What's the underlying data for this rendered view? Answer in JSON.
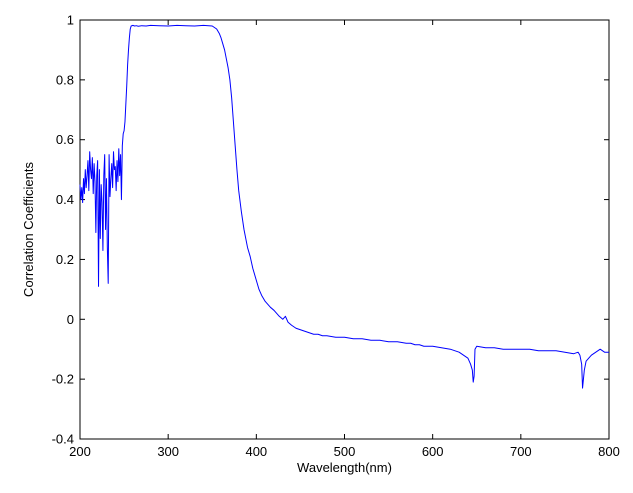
{
  "chart_data": {
    "type": "line",
    "title": "",
    "xlabel": "Wavelength(nm)",
    "ylabel": "Correlation Coefficients",
    "xlim": [
      200,
      800
    ],
    "ylim": [
      -0.4,
      1
    ],
    "xticks": [
      200,
      300,
      400,
      500,
      600,
      700,
      800
    ],
    "xtick_labels": [
      "200",
      "300",
      "400",
      "500",
      "600",
      "700",
      "800"
    ],
    "yticks": [
      -0.4,
      -0.2,
      0,
      0.2,
      0.4,
      0.6,
      0.8,
      1
    ],
    "ytick_labels": [
      "-0.4",
      "-0.2",
      "0",
      "0.2",
      "0.4",
      "0.6",
      "0.8",
      "1"
    ],
    "grid": false,
    "legend": "none",
    "series": [
      {
        "color": "#0000ff",
        "x": [
          200,
          201,
          202,
          203,
          204,
          205,
          206,
          207,
          208,
          209,
          210,
          211,
          212,
          213,
          214,
          215,
          216,
          217,
          218,
          219,
          220,
          221,
          222,
          223,
          224,
          225,
          226,
          227,
          228,
          229,
          230,
          231,
          232,
          233,
          234,
          235,
          236,
          237,
          238,
          239,
          240,
          241,
          242,
          243,
          244,
          245,
          246,
          247,
          248,
          249,
          250,
          251,
          252,
          253,
          254,
          255,
          256,
          257,
          258,
          260,
          262,
          264,
          266,
          268,
          270,
          275,
          280,
          290,
          300,
          310,
          320,
          330,
          340,
          350,
          355,
          358,
          360,
          362,
          364,
          366,
          368,
          370,
          372,
          374,
          376,
          378,
          380,
          383,
          386,
          390,
          393,
          396,
          400,
          403,
          406,
          410,
          413,
          416,
          420,
          423,
          426,
          430,
          433,
          436,
          440,
          445,
          450,
          455,
          460,
          465,
          470,
          475,
          480,
          490,
          500,
          510,
          520,
          530,
          540,
          550,
          560,
          570,
          575,
          580,
          585,
          590,
          600,
          610,
          620,
          630,
          640,
          643,
          645,
          646,
          647,
          648,
          650,
          660,
          670,
          680,
          690,
          700,
          710,
          720,
          730,
          740,
          750,
          760,
          765,
          767,
          769,
          770,
          771,
          772,
          774,
          777,
          780,
          785,
          790,
          795,
          800
        ],
        "y": [
          0.45,
          0.4,
          0.44,
          0.39,
          0.47,
          0.42,
          0.5,
          0.44,
          0.48,
          0.53,
          0.43,
          0.56,
          0.5,
          0.47,
          0.54,
          0.42,
          0.52,
          0.46,
          0.29,
          0.48,
          0.53,
          0.11,
          0.5,
          0.27,
          0.45,
          0.39,
          0.23,
          0.48,
          0.55,
          0.3,
          0.47,
          0.24,
          0.12,
          0.55,
          0.41,
          0.47,
          0.52,
          0.44,
          0.56,
          0.5,
          0.51,
          0.43,
          0.53,
          0.46,
          0.57,
          0.48,
          0.55,
          0.4,
          0.58,
          0.62,
          0.63,
          0.66,
          0.72,
          0.78,
          0.85,
          0.9,
          0.94,
          0.97,
          0.98,
          0.982,
          0.98,
          0.981,
          0.979,
          0.98,
          0.981,
          0.98,
          0.982,
          0.981,
          0.98,
          0.982,
          0.981,
          0.98,
          0.982,
          0.98,
          0.97,
          0.955,
          0.94,
          0.92,
          0.9,
          0.87,
          0.84,
          0.8,
          0.74,
          0.66,
          0.58,
          0.5,
          0.43,
          0.36,
          0.3,
          0.24,
          0.21,
          0.17,
          0.13,
          0.1,
          0.08,
          0.06,
          0.05,
          0.04,
          0.03,
          0.02,
          0.01,
          0.0,
          0.01,
          -0.01,
          -0.02,
          -0.03,
          -0.035,
          -0.04,
          -0.045,
          -0.05,
          -0.05,
          -0.055,
          -0.055,
          -0.06,
          -0.06,
          -0.065,
          -0.065,
          -0.07,
          -0.07,
          -0.075,
          -0.075,
          -0.08,
          -0.08,
          -0.085,
          -0.085,
          -0.09,
          -0.09,
          -0.095,
          -0.1,
          -0.11,
          -0.13,
          -0.15,
          -0.17,
          -0.21,
          -0.19,
          -0.1,
          -0.09,
          -0.095,
          -0.095,
          -0.1,
          -0.1,
          -0.1,
          -0.1,
          -0.105,
          -0.105,
          -0.105,
          -0.11,
          -0.115,
          -0.11,
          -0.12,
          -0.15,
          -0.23,
          -0.2,
          -0.17,
          -0.14,
          -0.13,
          -0.12,
          -0.11,
          -0.1,
          -0.11,
          -0.11
        ]
      }
    ]
  }
}
